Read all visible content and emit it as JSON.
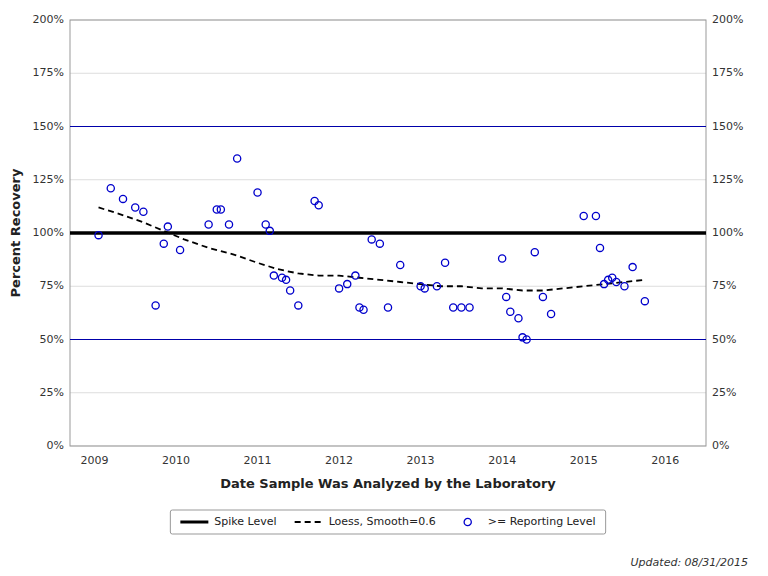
{
  "chart_data": {
    "type": "scatter",
    "xlabel": "Date Sample Was Analyzed by the Laboratory",
    "ylabel": "Percent Recovery",
    "annotation": "Updated: 08/31/2015",
    "xlim": [
      2008.7,
      2016.5
    ],
    "xticks": [
      2009,
      2010,
      2011,
      2012,
      2013,
      2014,
      2015,
      2016
    ],
    "ylim": [
      0,
      200
    ],
    "yticks": [
      {
        "value": 0,
        "label": "0%"
      },
      {
        "value": 25,
        "label": "25%"
      },
      {
        "value": 50,
        "label": "50%"
      },
      {
        "value": 75,
        "label": "75%"
      },
      {
        "value": 100,
        "label": "100%"
      },
      {
        "value": 125,
        "label": "125%"
      },
      {
        "value": 150,
        "label": "150%"
      },
      {
        "value": 175,
        "label": "175%"
      },
      {
        "value": 200,
        "label": "200%"
      }
    ],
    "y2lim": [
      0,
      200
    ],
    "y2ticks": [
      {
        "value": 0,
        "label": "0%"
      },
      {
        "value": 25,
        "label": "25%"
      },
      {
        "value": 50,
        "label": "50%"
      },
      {
        "value": 75,
        "label": "75%"
      },
      {
        "value": 100,
        "label": "100%"
      },
      {
        "value": 125,
        "label": "125%"
      },
      {
        "value": 150,
        "label": "150%"
      },
      {
        "value": 175,
        "label": "175%"
      },
      {
        "value": 200,
        "label": "200%"
      }
    ],
    "grid": true,
    "legend": "bottom",
    "series": [
      {
        "name": "Spike Level",
        "type": "hline",
        "color": "#000000",
        "line_style": "solid",
        "values": [
          100
        ]
      },
      {
        "name": "Loess, Smooth=0.6",
        "type": "line",
        "color": "#000000",
        "line_style": "dashed",
        "x": [
          2009.05,
          2009.3,
          2009.6,
          2009.85,
          2010.1,
          2010.4,
          2010.7,
          2011.0,
          2011.25,
          2011.5,
          2011.75,
          2012.0,
          2012.25,
          2012.5,
          2012.75,
          2013.0,
          2013.25,
          2013.5,
          2013.75,
          2014.0,
          2014.25,
          2014.5,
          2014.75,
          2015.0,
          2015.25,
          2015.5,
          2015.75
        ],
        "values": [
          112,
          109,
          105,
          101,
          97,
          93,
          90,
          86,
          83,
          81,
          80,
          80,
          79,
          78,
          77,
          76,
          75,
          75,
          74,
          74,
          73,
          73,
          74,
          75,
          76,
          77,
          78
        ]
      },
      {
        "name": ">= Reporting Level",
        "type": "scatter",
        "color": "#0000cc",
        "marker": "circle",
        "x": [
          2009.05,
          2009.2,
          2009.35,
          2009.5,
          2009.6,
          2009.75,
          2009.85,
          2009.9,
          2010.05,
          2010.4,
          2010.5,
          2010.55,
          2010.65,
          2010.75,
          2011.0,
          2011.1,
          2011.15,
          2011.2,
          2011.3,
          2011.35,
          2011.4,
          2011.5,
          2011.7,
          2011.75,
          2012.0,
          2012.1,
          2012.2,
          2012.25,
          2012.3,
          2012.4,
          2012.5,
          2012.6,
          2012.75,
          2013.0,
          2013.05,
          2013.2,
          2013.3,
          2013.4,
          2013.5,
          2013.6,
          2014.0,
          2014.05,
          2014.1,
          2014.2,
          2014.25,
          2014.3,
          2014.4,
          2014.5,
          2014.6,
          2015.0,
          2015.15,
          2015.2,
          2015.25,
          2015.3,
          2015.35,
          2015.4,
          2015.5,
          2015.6,
          2015.75
        ],
        "values": [
          99,
          121,
          116,
          112,
          110,
          66,
          95,
          103,
          92,
          104,
          111,
          111,
          104,
          135,
          119,
          104,
          101,
          80,
          79,
          78,
          73,
          66,
          115,
          113,
          74,
          76,
          80,
          65,
          64,
          97,
          95,
          65,
          85,
          75,
          74,
          75,
          86,
          65,
          65,
          65,
          88,
          70,
          63,
          60,
          51,
          50,
          91,
          70,
          62,
          108,
          108,
          93,
          76,
          78,
          79,
          77,
          75,
          84,
          68
        ]
      },
      {
        "type": "hline",
        "color": "#0000aa",
        "line_style": "solid",
        "values": [
          50,
          150
        ]
      }
    ]
  }
}
